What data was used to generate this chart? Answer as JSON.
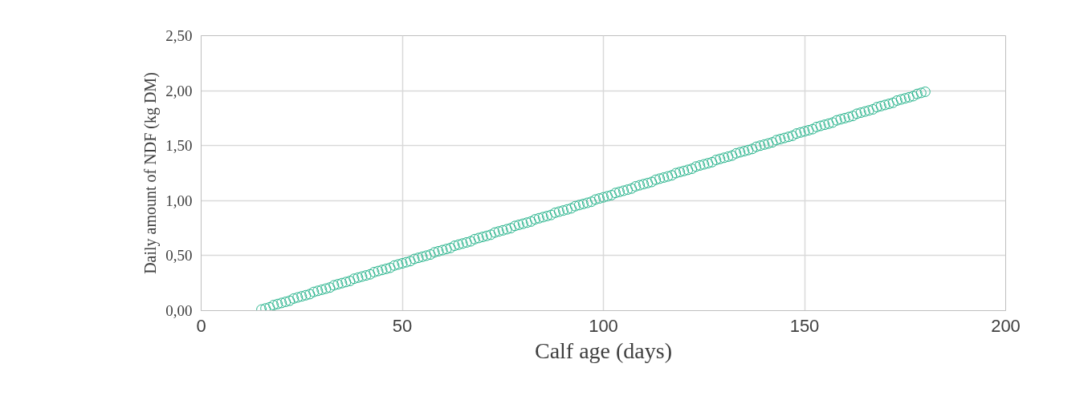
{
  "chart_data": {
    "type": "scatter",
    "xlabel": "Calf age (days)",
    "ylabel": "Daily amount of NDF (kg DM)",
    "x": [
      15,
      16,
      17,
      18,
      19,
      20,
      21,
      22,
      23,
      24,
      25,
      26,
      27,
      28,
      29,
      30,
      31,
      32,
      33,
      34,
      35,
      36,
      37,
      38,
      39,
      40,
      41,
      42,
      43,
      44,
      45,
      46,
      47,
      48,
      49,
      50,
      51,
      52,
      53,
      54,
      55,
      56,
      57,
      58,
      59,
      60,
      61,
      62,
      63,
      64,
      65,
      66,
      67,
      68,
      69,
      70,
      71,
      72,
      73,
      74,
      75,
      76,
      77,
      78,
      79,
      80,
      81,
      82,
      83,
      84,
      85,
      86,
      87,
      88,
      89,
      90,
      91,
      92,
      93,
      94,
      95,
      96,
      97,
      98,
      99,
      100,
      101,
      102,
      103,
      104,
      105,
      106,
      107,
      108,
      109,
      110,
      111,
      112,
      113,
      114,
      115,
      116,
      117,
      118,
      119,
      120,
      121,
      122,
      123,
      124,
      125,
      126,
      127,
      128,
      129,
      130,
      131,
      132,
      133,
      134,
      135,
      136,
      137,
      138,
      139,
      140,
      141,
      142,
      143,
      144,
      145,
      146,
      147,
      148,
      149,
      150,
      151,
      152,
      153,
      154,
      155,
      156,
      157,
      158,
      159,
      160,
      161,
      162,
      163,
      164,
      165,
      166,
      167,
      168,
      169,
      170,
      171,
      172,
      173,
      174,
      175,
      176,
      177,
      178,
      179,
      180
    ],
    "series": [
      {
        "color": "#2bb58e",
        "values": [
          0.01,
          0.02,
          0.03,
          0.05,
          0.06,
          0.07,
          0.08,
          0.09,
          0.11,
          0.12,
          0.13,
          0.14,
          0.15,
          0.17,
          0.18,
          0.19,
          0.2,
          0.21,
          0.23,
          0.24,
          0.25,
          0.26,
          0.27,
          0.29,
          0.3,
          0.31,
          0.32,
          0.33,
          0.35,
          0.36,
          0.37,
          0.38,
          0.39,
          0.41,
          0.42,
          0.43,
          0.44,
          0.45,
          0.47,
          0.48,
          0.49,
          0.5,
          0.51,
          0.53,
          0.54,
          0.55,
          0.56,
          0.57,
          0.59,
          0.6,
          0.61,
          0.62,
          0.63,
          0.65,
          0.66,
          0.67,
          0.68,
          0.69,
          0.71,
          0.72,
          0.73,
          0.74,
          0.75,
          0.77,
          0.78,
          0.79,
          0.8,
          0.81,
          0.83,
          0.84,
          0.85,
          0.86,
          0.87,
          0.89,
          0.9,
          0.91,
          0.92,
          0.93,
          0.95,
          0.96,
          0.97,
          0.98,
          0.99,
          1.01,
          1.02,
          1.03,
          1.04,
          1.05,
          1.07,
          1.08,
          1.09,
          1.1,
          1.11,
          1.13,
          1.14,
          1.15,
          1.16,
          1.17,
          1.19,
          1.2,
          1.21,
          1.22,
          1.23,
          1.25,
          1.26,
          1.27,
          1.28,
          1.29,
          1.31,
          1.32,
          1.33,
          1.34,
          1.35,
          1.37,
          1.38,
          1.39,
          1.4,
          1.41,
          1.43,
          1.44,
          1.45,
          1.46,
          1.47,
          1.49,
          1.5,
          1.51,
          1.52,
          1.53,
          1.55,
          1.56,
          1.57,
          1.58,
          1.59,
          1.61,
          1.62,
          1.63,
          1.64,
          1.65,
          1.67,
          1.68,
          1.69,
          1.7,
          1.71,
          1.73,
          1.74,
          1.75,
          1.76,
          1.77,
          1.79,
          1.8,
          1.81,
          1.82,
          1.83,
          1.85,
          1.86,
          1.87,
          1.88,
          1.89,
          1.91,
          1.92,
          1.93,
          1.94,
          1.95,
          1.97,
          1.98,
          1.99
        ]
      }
    ],
    "xlim": [
      0,
      200
    ],
    "xticks": [
      0,
      50,
      100,
      150,
      200
    ],
    "ylim": [
      0,
      2.5
    ],
    "yticks": [
      {
        "value": 0,
        "label": "0,00"
      },
      {
        "value": 0.5,
        "label": "0,50"
      },
      {
        "value": 1,
        "label": "1,00"
      },
      {
        "value": 1.5,
        "label": "1,50"
      },
      {
        "value": 2,
        "label": "2,00"
      },
      {
        "value": 2.5,
        "label": "2,50"
      }
    ],
    "grid": true,
    "marker": "circle"
  }
}
